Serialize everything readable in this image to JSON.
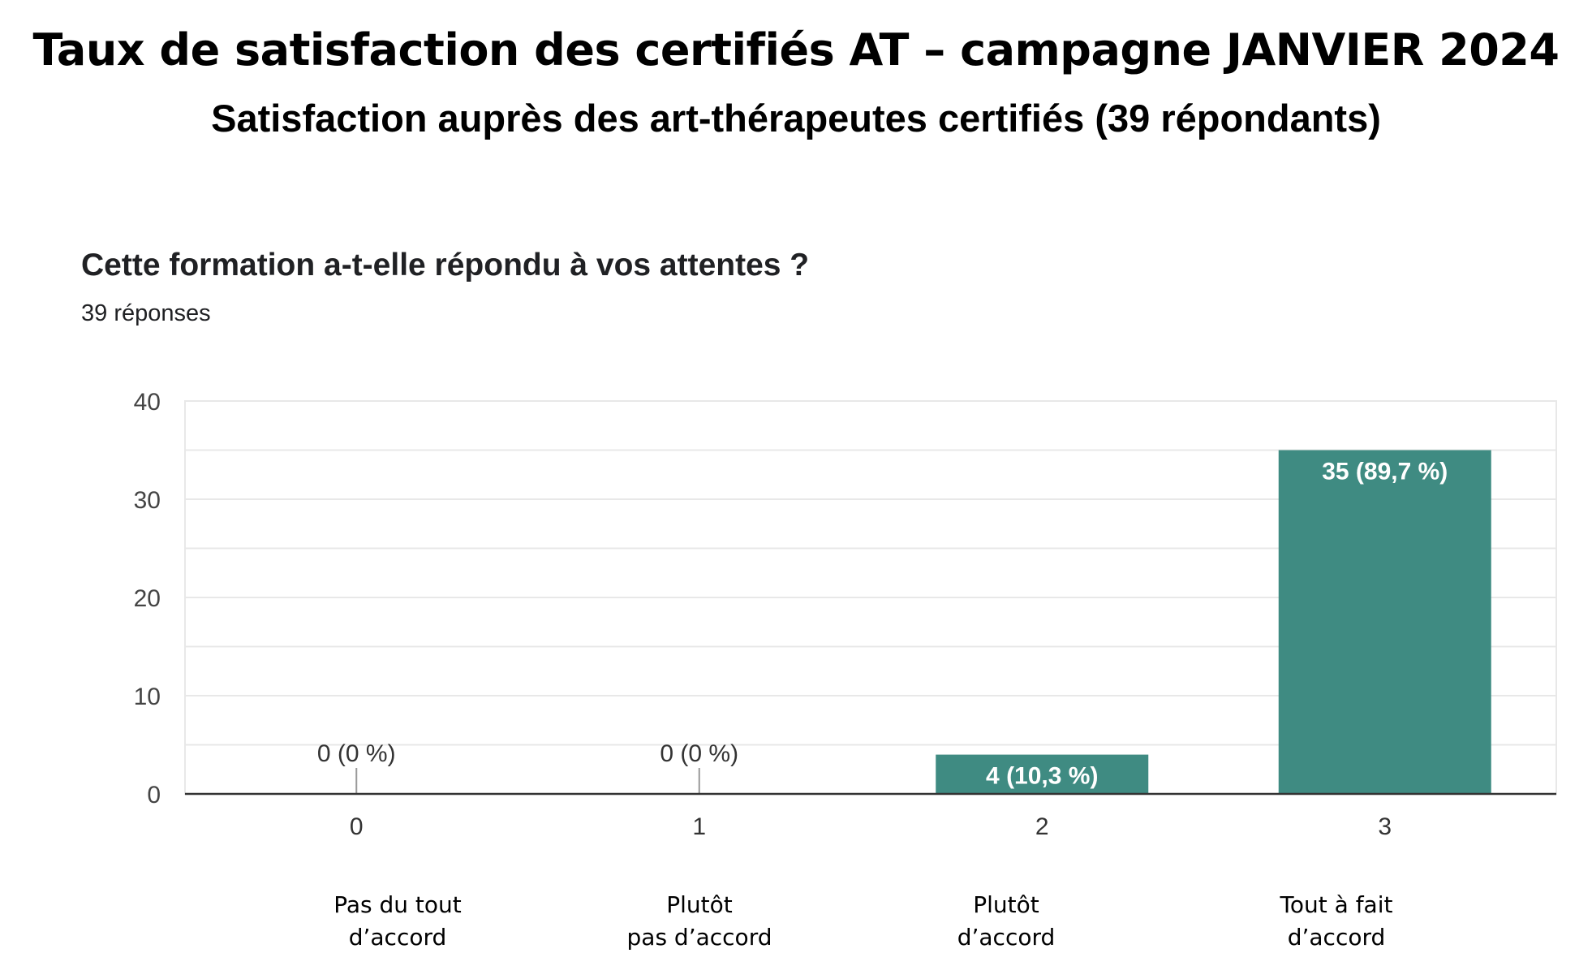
{
  "header": {
    "title": "Taux de satisfaction des certifiés AT – campagne JANVIER  2024",
    "subtitle": "Satisfaction auprès des art-thérapeutes certifiés (39 répondants)"
  },
  "colors": {
    "bar": "#3f8b82",
    "grid": "#e8e8e8",
    "axis": "#333333"
  },
  "chart_data": {
    "type": "bar",
    "title": "Cette formation a-t-elle répondu à vos attentes ?",
    "subtitle": "39 réponses",
    "categories": [
      "0",
      "1",
      "2",
      "3"
    ],
    "values": [
      0,
      0,
      4,
      35
    ],
    "data_labels": [
      "0 (0 %)",
      "0 (0 %)",
      "4 (10,3 %)",
      "35 (89,7 %)"
    ],
    "category_descriptions": [
      "Pas du tout\nd’accord",
      "Plutôt\npas d’accord",
      "Plutôt\nd’accord",
      "Tout à fait\nd’accord"
    ],
    "y_ticks": [
      0,
      10,
      20,
      30,
      40
    ],
    "ylim": [
      0,
      40
    ],
    "grid": true,
    "xlabel": "",
    "ylabel": ""
  }
}
